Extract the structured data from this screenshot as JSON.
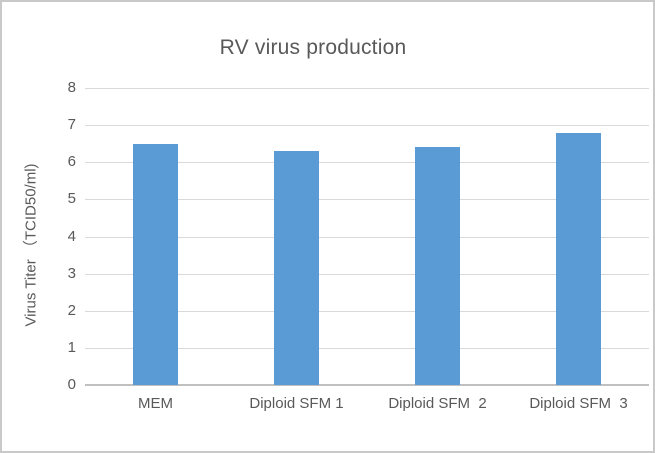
{
  "window": {
    "background": "#ffffff",
    "border_color": "#c9c9c9"
  },
  "chart_data": {
    "type": "bar",
    "title": "RV virus production",
    "categories": [
      "MEM",
      "Diploid SFM 1",
      "Diploid SFM  2",
      "Diploid SFM  3"
    ],
    "values": [
      6.5,
      6.3,
      6.4,
      6.8
    ],
    "xlabel": "",
    "ylabel": "Virus Titer （TCID50/ml)",
    "ylim": [
      0,
      8
    ],
    "yticks": [
      0,
      1,
      2,
      3,
      4,
      5,
      6,
      7,
      8
    ],
    "grid": true,
    "legend": false,
    "bar_color": "#5b9bd5",
    "gridline_color": "#d9d9d9",
    "axis_line_color": "#c0c0c0",
    "text_color": "#595959"
  }
}
